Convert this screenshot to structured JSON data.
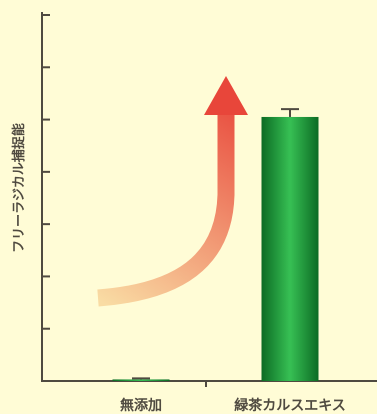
{
  "chart_data": {
    "type": "bar",
    "categories": [
      "無添加",
      "緑茶カルスエキス"
    ],
    "values": [
      0.3,
      50.5
    ],
    "error": [
      0.2,
      1.5
    ],
    "ylabel": "フリーラジカル捕捉能",
    "xlabel": "",
    "title": "",
    "ylim": [
      0,
      70
    ],
    "y_tick_step": 10,
    "y_tick_labels_shown": false,
    "grid": false,
    "legend": "none",
    "annotation": "increase-arrow",
    "colors": {
      "background": "#fffcd6",
      "axis": "#4f4a40",
      "bar_dark": "#0c6b24",
      "bar_light": "#37c054",
      "arrow_start": "#f9dca4",
      "arrow_end": "#e8463a"
    }
  }
}
